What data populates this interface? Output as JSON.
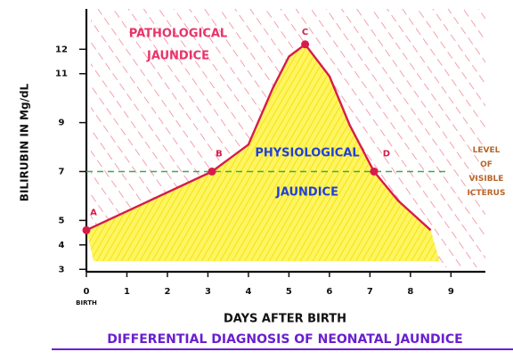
{
  "chart_data": {
    "type": "line",
    "title": "DIFFERENTIAL DIAGNOSIS OF NEONATAL JAUNDICE",
    "xlabel": "DAYS AFTER BIRTH",
    "ylabel": "BILIRUBIN IN Mg/dL",
    "x_note": "BIRTH",
    "x": [
      0,
      3.1,
      4,
      4.6,
      5,
      5.4,
      6,
      6.5,
      7.1,
      7.7,
      8.5
    ],
    "values": [
      4.6,
      7,
      8.1,
      10.4,
      11.7,
      12.2,
      10.9,
      8.9,
      7,
      5.8,
      4.6
    ],
    "point_labels": [
      "A",
      "B",
      null,
      null,
      null,
      "C",
      null,
      null,
      "D",
      null,
      null
    ],
    "color": "#d81b4a",
    "xlim": [
      0,
      9.85
    ],
    "xticks": [
      0,
      1,
      2,
      3,
      4,
      5,
      6,
      7,
      8,
      9
    ],
    "ylim": [
      2.9,
      13.65
    ],
    "yticks": [
      3,
      4,
      5,
      7,
      9,
      11,
      12
    ],
    "reference_line": {
      "value": 7,
      "color": "#3aa857",
      "label": [
        "LEVEL",
        "OF",
        "VISIBLE",
        "ICTERUS"
      ],
      "label_color": "#b8652a"
    },
    "region_labels": [
      {
        "text": [
          "PATHOLOGICAL",
          "JAUNDICE"
        ],
        "color": "#e8336b"
      },
      {
        "text": [
          "PHYSIOLOGICAL",
          "JAUNDICE"
        ],
        "color": "#2040d8"
      }
    ],
    "title_color": "#6a1fd0"
  }
}
